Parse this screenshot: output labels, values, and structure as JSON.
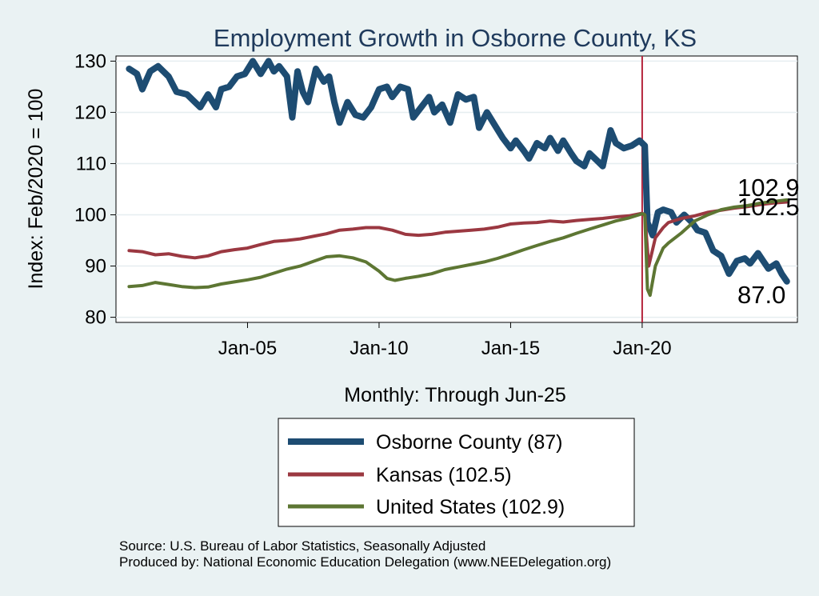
{
  "chart_data": {
    "type": "line",
    "title": "Employment Growth in Osborne  County, KS",
    "ylabel": "Index: Feb/2020 = 100",
    "xlabel": "Monthly: Through Jun-25",
    "ylim": [
      79,
      131
    ],
    "xlim": [
      2000.0,
      2025.9
    ],
    "yticks": [
      80,
      90,
      100,
      110,
      120,
      130
    ],
    "xticks": [
      {
        "label": "Jan-05",
        "value": 2005.0
      },
      {
        "label": "Jan-10",
        "value": 2010.0
      },
      {
        "label": "Jan-15",
        "value": 2015.0
      },
      {
        "label": "Jan-20",
        "value": 2020.0
      }
    ],
    "reference_line": {
      "x": 2020.0,
      "color": "#b5243c"
    },
    "series": [
      {
        "name": "Osborne  County",
        "legend": "Osborne  County (87)",
        "end_label": "87.0",
        "color": "#1d4c72",
        "width": 8,
        "points": [
          [
            2000.5,
            128.5
          ],
          [
            2000.8,
            127.5
          ],
          [
            2001.0,
            124.5
          ],
          [
            2001.3,
            128.0
          ],
          [
            2001.6,
            129.0
          ],
          [
            2002.0,
            127.0
          ],
          [
            2002.3,
            124.0
          ],
          [
            2002.7,
            123.5
          ],
          [
            2003.0,
            122.0
          ],
          [
            2003.2,
            121.0
          ],
          [
            2003.5,
            123.5
          ],
          [
            2003.8,
            121.0
          ],
          [
            2004.0,
            124.5
          ],
          [
            2004.3,
            125.0
          ],
          [
            2004.6,
            127.0
          ],
          [
            2004.9,
            127.5
          ],
          [
            2005.2,
            130.0
          ],
          [
            2005.5,
            127.5
          ],
          [
            2005.8,
            130.0
          ],
          [
            2006.0,
            128.0
          ],
          [
            2006.2,
            129.0
          ],
          [
            2006.5,
            127.0
          ],
          [
            2006.7,
            119.0
          ],
          [
            2006.9,
            128.0
          ],
          [
            2007.1,
            124.0
          ],
          [
            2007.3,
            122.0
          ],
          [
            2007.6,
            128.5
          ],
          [
            2007.9,
            126.0
          ],
          [
            2008.1,
            127.0
          ],
          [
            2008.3,
            122.0
          ],
          [
            2008.5,
            118.0
          ],
          [
            2008.8,
            122.0
          ],
          [
            2009.1,
            119.5
          ],
          [
            2009.4,
            119.0
          ],
          [
            2009.7,
            121.0
          ],
          [
            2010.0,
            124.5
          ],
          [
            2010.3,
            125.0
          ],
          [
            2010.5,
            123.0
          ],
          [
            2010.8,
            125.0
          ],
          [
            2011.1,
            124.5
          ],
          [
            2011.3,
            119.0
          ],
          [
            2011.6,
            121.0
          ],
          [
            2011.9,
            123.0
          ],
          [
            2012.1,
            120.0
          ],
          [
            2012.4,
            121.5
          ],
          [
            2012.7,
            118.0
          ],
          [
            2013.0,
            123.5
          ],
          [
            2013.3,
            122.5
          ],
          [
            2013.6,
            123.0
          ],
          [
            2013.8,
            117.0
          ],
          [
            2014.1,
            120.0
          ],
          [
            2014.4,
            117.5
          ],
          [
            2014.7,
            115.0
          ],
          [
            2015.0,
            113.0
          ],
          [
            2015.2,
            114.5
          ],
          [
            2015.5,
            112.5
          ],
          [
            2015.7,
            111.0
          ],
          [
            2016.0,
            114.0
          ],
          [
            2016.3,
            113.0
          ],
          [
            2016.5,
            115.0
          ],
          [
            2016.8,
            112.5
          ],
          [
            2017.0,
            114.5
          ],
          [
            2017.3,
            112.0
          ],
          [
            2017.5,
            110.5
          ],
          [
            2017.8,
            109.5
          ],
          [
            2018.0,
            112.0
          ],
          [
            2018.3,
            110.5
          ],
          [
            2018.5,
            109.5
          ],
          [
            2018.8,
            116.5
          ],
          [
            2019.0,
            114.0
          ],
          [
            2019.3,
            113.0
          ],
          [
            2019.6,
            113.5
          ],
          [
            2019.9,
            114.5
          ],
          [
            2020.1,
            113.5
          ],
          [
            2020.2,
            98.5
          ],
          [
            2020.4,
            96.0
          ],
          [
            2020.6,
            100.5
          ],
          [
            2020.8,
            101.0
          ],
          [
            2021.1,
            100.5
          ],
          [
            2021.3,
            98.5
          ],
          [
            2021.6,
            100.0
          ],
          [
            2021.9,
            98.5
          ],
          [
            2022.1,
            97.0
          ],
          [
            2022.4,
            96.5
          ],
          [
            2022.7,
            93.0
          ],
          [
            2023.0,
            92.0
          ],
          [
            2023.3,
            88.5
          ],
          [
            2023.6,
            91.0
          ],
          [
            2023.9,
            91.5
          ],
          [
            2024.1,
            90.5
          ],
          [
            2024.4,
            92.5
          ],
          [
            2024.6,
            91.0
          ],
          [
            2024.8,
            89.5
          ],
          [
            2025.1,
            90.5
          ],
          [
            2025.3,
            88.5
          ],
          [
            2025.5,
            87.0
          ]
        ]
      },
      {
        "name": "Kansas",
        "legend": "Kansas (102.5)",
        "end_label": "102.5",
        "color": "#9b3841",
        "width": 4,
        "points": [
          [
            2000.5,
            93.0
          ],
          [
            2001.0,
            92.8
          ],
          [
            2001.5,
            92.2
          ],
          [
            2002.0,
            92.4
          ],
          [
            2002.5,
            91.9
          ],
          [
            2003.0,
            91.6
          ],
          [
            2003.5,
            92.0
          ],
          [
            2004.0,
            92.8
          ],
          [
            2004.5,
            93.2
          ],
          [
            2005.0,
            93.5
          ],
          [
            2005.5,
            94.2
          ],
          [
            2006.0,
            94.8
          ],
          [
            2006.5,
            95.0
          ],
          [
            2007.0,
            95.3
          ],
          [
            2007.5,
            95.8
          ],
          [
            2008.0,
            96.3
          ],
          [
            2008.5,
            97.0
          ],
          [
            2009.0,
            97.2
          ],
          [
            2009.5,
            97.5
          ],
          [
            2010.0,
            97.5
          ],
          [
            2010.5,
            97.0
          ],
          [
            2011.0,
            96.2
          ],
          [
            2011.5,
            96.0
          ],
          [
            2012.0,
            96.2
          ],
          [
            2012.5,
            96.6
          ],
          [
            2013.0,
            96.8
          ],
          [
            2013.5,
            97.0
          ],
          [
            2014.0,
            97.2
          ],
          [
            2014.5,
            97.6
          ],
          [
            2015.0,
            98.2
          ],
          [
            2015.5,
            98.4
          ],
          [
            2016.0,
            98.5
          ],
          [
            2016.5,
            98.8
          ],
          [
            2017.0,
            98.6
          ],
          [
            2017.5,
            98.9
          ],
          [
            2018.0,
            99.1
          ],
          [
            2018.5,
            99.3
          ],
          [
            2019.0,
            99.6
          ],
          [
            2019.5,
            99.8
          ],
          [
            2020.0,
            100.3
          ],
          [
            2020.1,
            100.0
          ],
          [
            2020.25,
            90.0
          ],
          [
            2020.5,
            95.5
          ],
          [
            2020.8,
            97.5
          ],
          [
            2021.0,
            98.5
          ],
          [
            2021.5,
            99.3
          ],
          [
            2022.0,
            99.8
          ],
          [
            2022.5,
            100.5
          ],
          [
            2023.0,
            100.9
          ],
          [
            2023.5,
            101.3
          ],
          [
            2024.0,
            101.6
          ],
          [
            2024.5,
            102.0
          ],
          [
            2025.0,
            102.3
          ],
          [
            2025.5,
            102.5
          ]
        ]
      },
      {
        "name": "United States",
        "legend": "United States (102.9)",
        "end_label": "102.9",
        "color": "#5d7633",
        "width": 4,
        "points": [
          [
            2000.5,
            86.0
          ],
          [
            2001.0,
            86.2
          ],
          [
            2001.5,
            86.8
          ],
          [
            2002.0,
            86.4
          ],
          [
            2002.5,
            86.0
          ],
          [
            2003.0,
            85.8
          ],
          [
            2003.5,
            85.9
          ],
          [
            2004.0,
            86.5
          ],
          [
            2004.5,
            86.9
          ],
          [
            2005.0,
            87.3
          ],
          [
            2005.5,
            87.8
          ],
          [
            2006.0,
            88.6
          ],
          [
            2006.5,
            89.4
          ],
          [
            2007.0,
            90.0
          ],
          [
            2007.5,
            90.9
          ],
          [
            2008.0,
            91.8
          ],
          [
            2008.5,
            92.0
          ],
          [
            2009.0,
            91.6
          ],
          [
            2009.5,
            90.8
          ],
          [
            2010.0,
            89.0
          ],
          [
            2010.3,
            87.6
          ],
          [
            2010.6,
            87.2
          ],
          [
            2011.0,
            87.6
          ],
          [
            2011.5,
            88.0
          ],
          [
            2012.0,
            88.5
          ],
          [
            2012.5,
            89.3
          ],
          [
            2013.0,
            89.8
          ],
          [
            2013.5,
            90.3
          ],
          [
            2014.0,
            90.8
          ],
          [
            2014.5,
            91.5
          ],
          [
            2015.0,
            92.3
          ],
          [
            2015.5,
            93.2
          ],
          [
            2016.0,
            94.0
          ],
          [
            2016.5,
            94.8
          ],
          [
            2017.0,
            95.5
          ],
          [
            2017.5,
            96.4
          ],
          [
            2018.0,
            97.2
          ],
          [
            2018.5,
            98.0
          ],
          [
            2019.0,
            98.8
          ],
          [
            2019.5,
            99.4
          ],
          [
            2020.0,
            100.2
          ],
          [
            2020.1,
            100.0
          ],
          [
            2020.2,
            85.5
          ],
          [
            2020.3,
            84.3
          ],
          [
            2020.5,
            90.0
          ],
          [
            2020.8,
            93.5
          ],
          [
            2021.0,
            94.5
          ],
          [
            2021.5,
            96.5
          ],
          [
            2022.0,
            98.8
          ],
          [
            2022.5,
            100.0
          ],
          [
            2023.0,
            101.0
          ],
          [
            2023.5,
            101.5
          ],
          [
            2024.0,
            101.8
          ],
          [
            2024.5,
            102.3
          ],
          [
            2025.0,
            102.6
          ],
          [
            2025.5,
            102.9
          ]
        ]
      }
    ]
  },
  "notes": {
    "source": "Source: U.S. Bureau of Labor Statistics, Seasonally Adjusted",
    "produced_by": "Produced by: National Economic Education Delegation (www.NEEDelegation.org)"
  }
}
